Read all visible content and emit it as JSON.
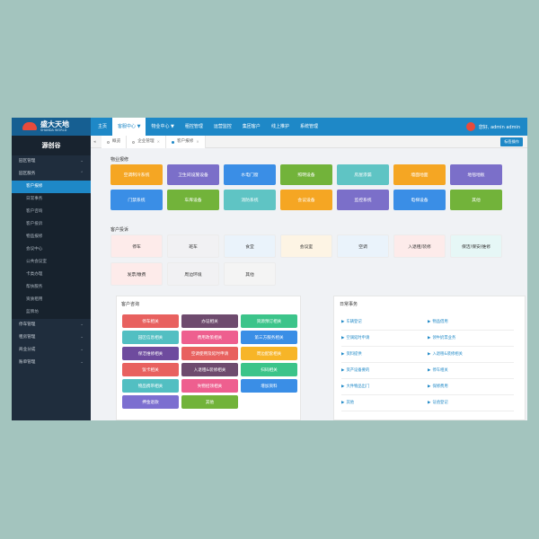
{
  "app": {
    "logo": {
      "name": "盛大天地",
      "subtitle": "SHANDA WORLD"
    },
    "top_nav": [
      "主页",
      "客服中心 ▼",
      "物业中心 ▼",
      "租控管理",
      "运营监控",
      "集团客户",
      "线上推护",
      "系统管理"
    ],
    "top_nav_active_index": 1,
    "user": {
      "greeting": "您好, admin admin"
    },
    "sidebar": {
      "title": "源创谷",
      "items": [
        {
          "label": "园区管理",
          "type": "group",
          "chevron": "⌄"
        },
        {
          "label": "园区服务",
          "type": "group",
          "chevron": "⌃"
        },
        {
          "label": "客户报修",
          "type": "sub",
          "active": true
        },
        {
          "label": "日常事务",
          "type": "sub"
        },
        {
          "label": "客户咨询",
          "type": "sub"
        },
        {
          "label": "客户投诉",
          "type": "sub"
        },
        {
          "label": "物品报修",
          "type": "sub"
        },
        {
          "label": "会议中心",
          "type": "sub"
        },
        {
          "label": "公共会议室",
          "type": "sub"
        },
        {
          "label": "卡类办理",
          "type": "sub"
        },
        {
          "label": "帮扶服务",
          "type": "sub"
        },
        {
          "label": "资质租用",
          "type": "sub"
        },
        {
          "label": "蓝牌坊",
          "type": "sub"
        },
        {
          "label": "停车管理",
          "type": "group",
          "chevron": "⌄"
        },
        {
          "label": "租房管理",
          "type": "group",
          "chevron": "⌄"
        },
        {
          "label": "商业分成",
          "type": "group",
          "chevron": "⌄"
        },
        {
          "label": "账单管理",
          "type": "group",
          "chevron": "⌄"
        }
      ]
    },
    "tabs": [
      {
        "label": "概览",
        "close": "",
        "active": false
      },
      {
        "label": "企业管理",
        "close": "×",
        "active": false
      },
      {
        "label": "客户报修",
        "close": "×",
        "active": true
      }
    ],
    "tab_prev_icon": "◂",
    "tab_action_label": "标签操作"
  },
  "repair": {
    "title": "物业报修",
    "items": [
      {
        "label": "空调制冷系统",
        "color": "#f5a623"
      },
      {
        "label": "卫生间设施设备",
        "color": "#7b6fc9"
      },
      {
        "label": "水电门窗",
        "color": "#3a8ee6"
      },
      {
        "label": "照明设备",
        "color": "#72b33a"
      },
      {
        "label": "房屋渗漏",
        "color": "#5fc4c4"
      },
      {
        "label": "墙面地面",
        "color": "#f5a623"
      },
      {
        "label": "地毯地板",
        "color": "#7b6fc9"
      },
      {
        "label": "门禁系统",
        "color": "#3a8ee6"
      },
      {
        "label": "车库设备",
        "color": "#72b33a"
      },
      {
        "label": "消防系统",
        "color": "#5fc4c4"
      },
      {
        "label": "会议设备",
        "color": "#f5a623"
      },
      {
        "label": "监控系统",
        "color": "#7b6fc9"
      },
      {
        "label": "电梯设备",
        "color": "#3a8ee6"
      },
      {
        "label": "其他",
        "color": "#72b33a"
      }
    ]
  },
  "complaint": {
    "title": "客户投诉",
    "items": [
      {
        "label": "停车",
        "color": "#fdebea"
      },
      {
        "label": "班车",
        "color": "#f1f1f3"
      },
      {
        "label": "食堂",
        "color": "#eaf3fb"
      },
      {
        "label": "会议室",
        "color": "#fdf4e4"
      },
      {
        "label": "空调",
        "color": "#eaf3fb"
      },
      {
        "label": "入退租/装修",
        "color": "#fdebea"
      },
      {
        "label": "保洁/保安/维修",
        "color": "#e6f7f6"
      },
      {
        "label": "发票/缴费",
        "color": "#fdebea"
      },
      {
        "label": "周边环境",
        "color": "#f1f1f3"
      },
      {
        "label": "其他",
        "color": "#f4f4f4"
      }
    ]
  },
  "inquiry": {
    "title": "客户咨询",
    "items": [
      {
        "label": "停车相关",
        "color": "#e8615f"
      },
      {
        "label": "办证相关",
        "color": "#6e4b6e"
      },
      {
        "label": "资源预订相关",
        "color": "#3cc48a"
      },
      {
        "label": "园区信息相关",
        "color": "#52bfc2"
      },
      {
        "label": "费用政策相关",
        "color": "#ee5f8f"
      },
      {
        "label": "第三方服务相关",
        "color": "#3a8ee6"
      },
      {
        "label": "保洁维修相关",
        "color": "#6e4b9e"
      },
      {
        "label": "空调使用及延时申请",
        "color": "#e8615f"
      },
      {
        "label": "周边配套相关",
        "color": "#f7b528"
      },
      {
        "label": "饭卡相关",
        "color": "#e8615f"
      },
      {
        "label": "入退租&装修相关",
        "color": "#6e4b6e"
      },
      {
        "label": "扫码相关",
        "color": "#3cc48a"
      },
      {
        "label": "物品携带相关",
        "color": "#52bfc2"
      },
      {
        "label": "失物招领相关",
        "color": "#ee5f8f"
      },
      {
        "label": "增加资料",
        "color": "#3a8ee6"
      },
      {
        "label": "押金退款",
        "color": "#7c6fd0"
      },
      {
        "label": "其他",
        "color": "#72b33a"
      }
    ]
  },
  "daily": {
    "title": "日常事务",
    "arrow": "▶",
    "items": [
      "车辆登记",
      "物品借用",
      "空调延时申请",
      "领牛奶票业务",
      "资料提供",
      "入退租&装修相关",
      "资产设备要的",
      "停车相关",
      "大件物品出门",
      "保修费用",
      "其他",
      "证函登记"
    ]
  }
}
